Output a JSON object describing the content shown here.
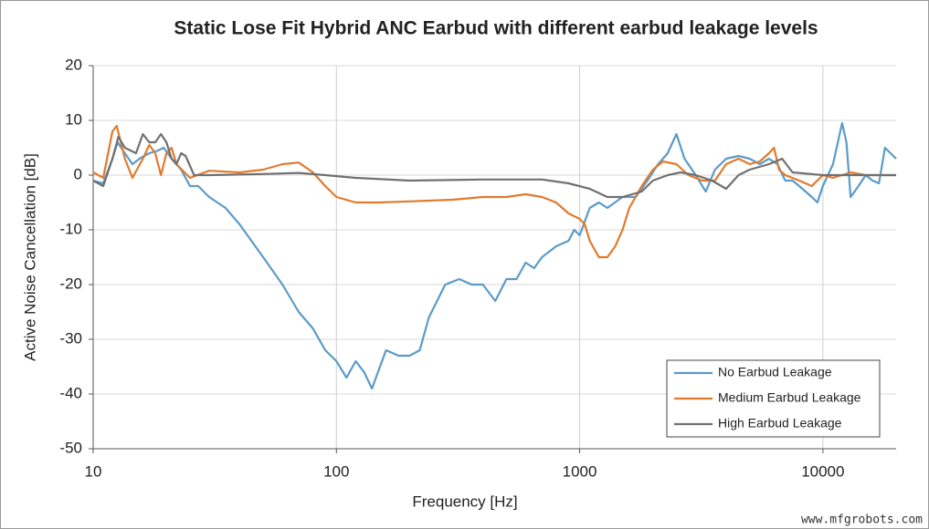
{
  "chart_data": {
    "type": "line",
    "title": "Static Lose Fit Hybrid ANC Earbud with different earbud leakage levels",
    "x_label": "Frequency  [Hz]",
    "y_label": "Active Noise Cancellation [dB]",
    "x_scale": "log",
    "xlim": [
      10,
      20000
    ],
    "xticks": [
      10,
      100,
      1000,
      10000
    ],
    "ylim": [
      -50,
      20
    ],
    "yticks": [
      -50,
      -40,
      -30,
      -20,
      -10,
      0,
      10,
      20
    ],
    "grid": true,
    "legend": "lower right",
    "watermark": "www.mfgrobots.com",
    "series": [
      {
        "name": "No Earbud Leakage",
        "color": "#5b9bc8",
        "x": [
          10,
          11,
          12,
          12.6,
          13.5,
          14.5,
          15.5,
          17,
          18.5,
          19.5,
          21,
          23,
          25,
          27,
          30,
          35,
          40,
          50,
          60,
          70,
          80,
          90,
          100,
          110,
          120,
          130,
          140,
          160,
          180,
          200,
          220,
          240,
          280,
          320,
          360,
          400,
          450,
          500,
          550,
          600,
          650,
          700,
          800,
          900,
          950,
          1000,
          1100,
          1200,
          1300,
          1500,
          1700,
          1900,
          2100,
          2300,
          2500,
          2700,
          3000,
          3300,
          3600,
          4000,
          4500,
          5000,
          5500,
          6000,
          6500,
          7000,
          7500,
          8000,
          9000,
          9500,
          10000,
          11000,
          12000,
          12500,
          13000,
          14000,
          15000,
          16000,
          17000,
          18000,
          20000
        ],
        "values": [
          -1,
          -1.5,
          3,
          6,
          4,
          2,
          3,
          4,
          4.5,
          5,
          3,
          1,
          -2,
          -2,
          -4,
          -6,
          -9,
          -15,
          -20,
          -25,
          -28,
          -32,
          -34,
          -37,
          -34,
          -36,
          -39,
          -32,
          -33,
          -33,
          -32,
          -26,
          -20,
          -19,
          -20,
          -20,
          -23,
          -19,
          -19,
          -16,
          -17,
          -15,
          -13,
          -12,
          -10,
          -11,
          -6,
          -5,
          -6,
          -4,
          -4,
          -1,
          2,
          4,
          7.5,
          3,
          0,
          -3,
          1,
          3,
          3.5,
          3,
          2,
          3,
          2,
          -1,
          -1,
          -2,
          -4,
          -5,
          -2,
          2,
          9.5,
          6,
          -4,
          -2,
          0,
          -1,
          -1.5,
          5,
          3
        ]
      },
      {
        "name": "Medium Earbud Leakage",
        "color": "#e07b2e",
        "x": [
          10,
          11,
          12,
          12.5,
          13.5,
          14.5,
          16,
          17,
          18,
          19,
          20,
          21,
          22,
          25,
          30,
          40,
          50,
          60,
          70,
          80,
          90,
          100,
          120,
          150,
          200,
          300,
          400,
          500,
          600,
          700,
          800,
          900,
          1000,
          1050,
          1100,
          1200,
          1300,
          1400,
          1500,
          1600,
          1800,
          2000,
          2200,
          2500,
          2800,
          3200,
          3600,
          4000,
          4500,
          5000,
          5500,
          6000,
          6300,
          6600,
          7000,
          8000,
          9000,
          10000,
          11000,
          12000,
          13000,
          15000,
          20000
        ],
        "values": [
          0.5,
          -0.5,
          8,
          9,
          3,
          -0.5,
          3,
          5.5,
          4,
          0,
          4,
          5,
          2,
          -0.5,
          0.8,
          0.5,
          1,
          2,
          2.3,
          0.5,
          -2,
          -4,
          -5,
          -5,
          -4.8,
          -4.5,
          -4,
          -4,
          -3.5,
          -4,
          -5,
          -7,
          -8,
          -9,
          -12,
          -15,
          -15,
          -13,
          -10,
          -6,
          -2,
          1,
          2.5,
          2,
          0,
          -1,
          -1,
          2,
          3,
          2,
          2.5,
          4,
          5,
          1,
          0,
          -1,
          -2,
          0,
          -0.5,
          0,
          0.5,
          0,
          0
        ]
      },
      {
        "name": "High Earbud Leakage",
        "color": "#707070",
        "x": [
          10,
          11,
          12,
          12.7,
          13.5,
          15,
          16,
          17,
          18,
          19,
          20,
          21,
          22,
          23,
          24,
          26,
          30,
          50,
          70,
          90,
          120,
          200,
          400,
          700,
          900,
          1100,
          1300,
          1500,
          1800,
          2000,
          2300,
          2600,
          3000,
          3500,
          4000,
          4500,
          5000,
          6000,
          6800,
          7500,
          10000,
          15000,
          20000
        ],
        "values": [
          -1,
          -2,
          3,
          7,
          5,
          4,
          7.5,
          6,
          6,
          7.5,
          6,
          3,
          2,
          4,
          3.5,
          0,
          0,
          0.2,
          0.4,
          0,
          -0.5,
          -1,
          -0.8,
          -0.8,
          -1.5,
          -2.5,
          -4,
          -4,
          -3,
          -1,
          0,
          0.5,
          0,
          -1,
          -2.5,
          0,
          1,
          2,
          3,
          0.5,
          0,
          0,
          0
        ]
      }
    ]
  }
}
